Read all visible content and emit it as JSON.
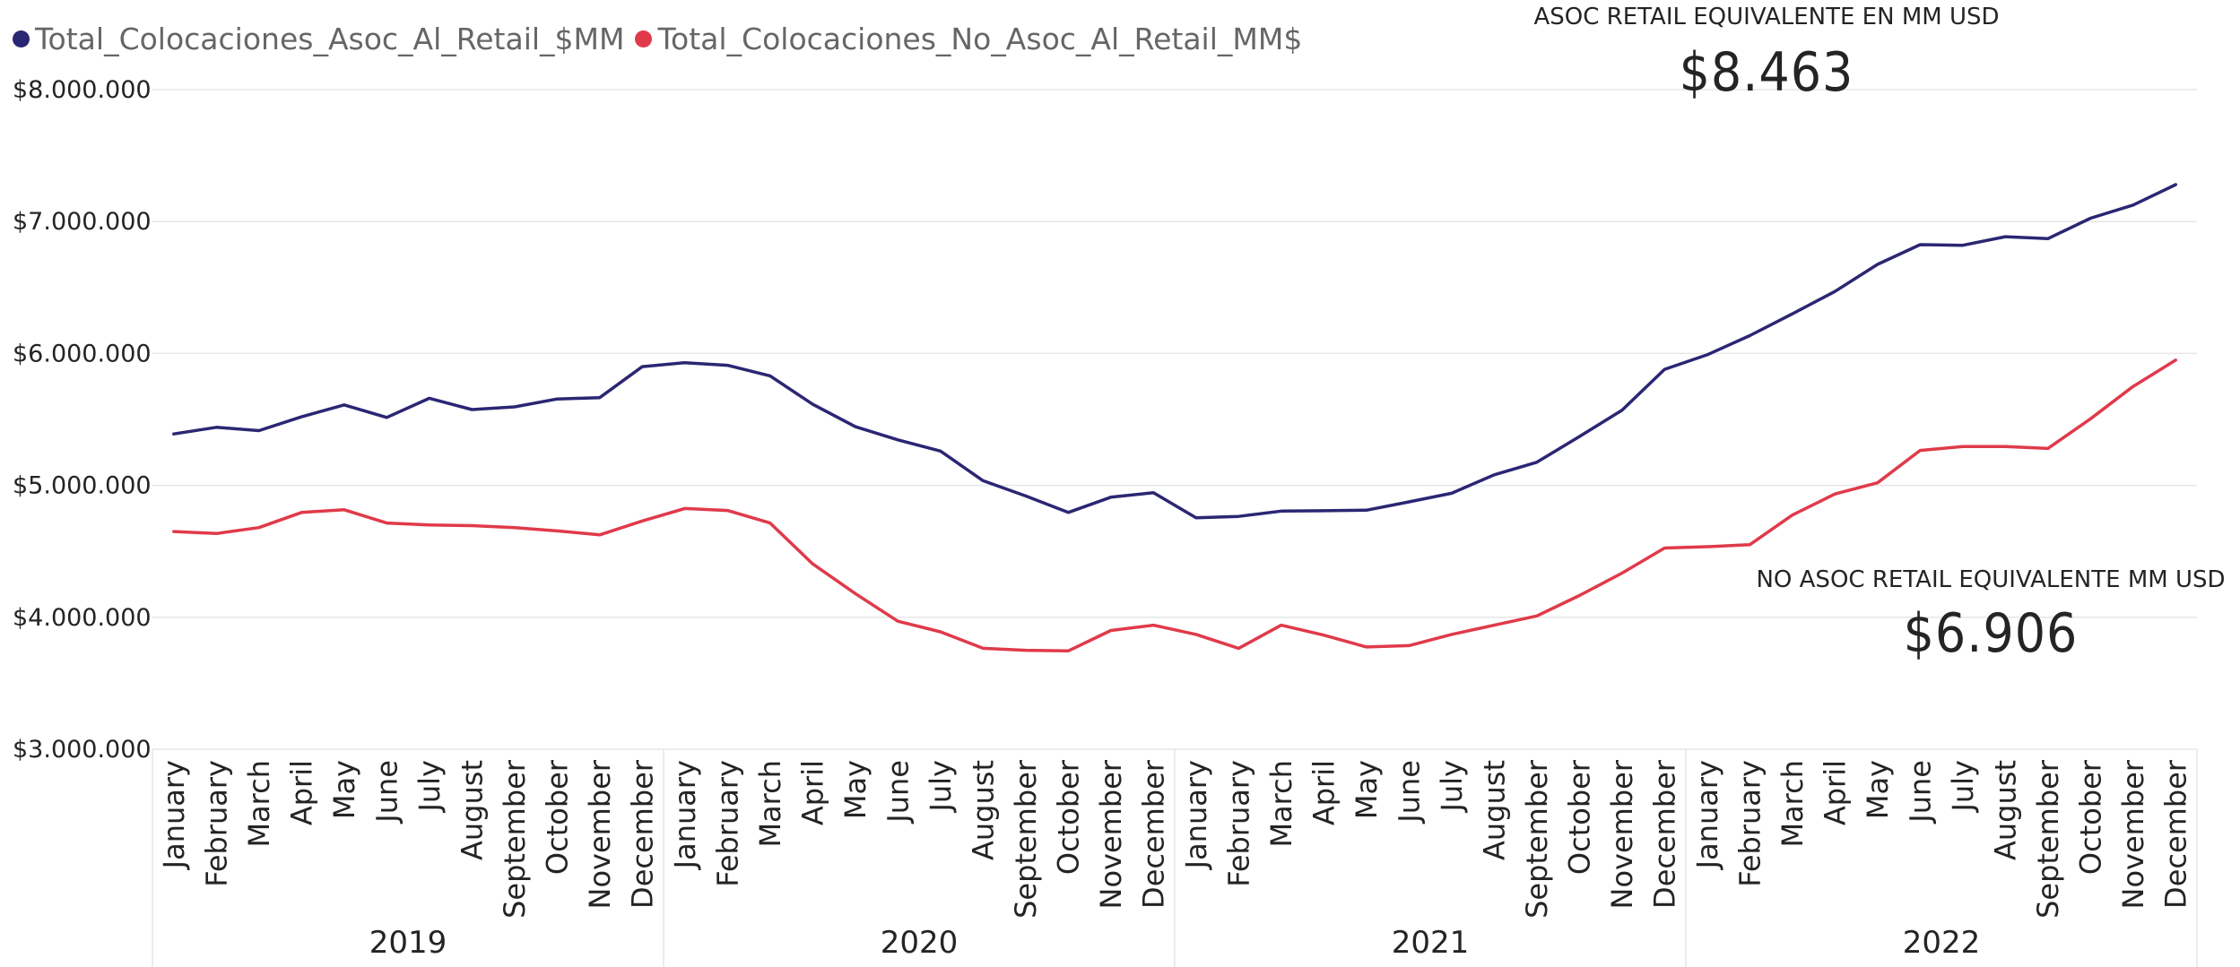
{
  "legend": {
    "items": [
      {
        "label": "Total_Colocaciones_Asoc_Al_Retail_$MM",
        "color": "#2b2673"
      },
      {
        "label": "Total_Colocaciones_No_Asoc_Al_Retail_MM$",
        "color": "#e03a4a"
      }
    ]
  },
  "cards": {
    "asoc": {
      "label": "ASOC RETAIL EQUIVALENTE EN MM USD",
      "value": "$8.463"
    },
    "no_asoc": {
      "label": "NO ASOC RETAIL EQUIVALENTE MM USD",
      "value": "$6.906"
    }
  },
  "chart_data": {
    "type": "line",
    "title": "",
    "xlabel": "",
    "ylabel": "",
    "ylim": [
      3000000,
      8000000
    ],
    "yticks": [
      3000000,
      4000000,
      5000000,
      6000000,
      7000000,
      8000000
    ],
    "ytick_labels": [
      "$3.000.000",
      "$4.000.000",
      "$5.000.000",
      "$6.000.000",
      "$7.000.000",
      "$8.000.000"
    ],
    "grid": true,
    "legend_position": "top-left",
    "years": [
      "2019",
      "2020",
      "2021",
      "2022"
    ],
    "months": [
      "January",
      "February",
      "March",
      "April",
      "May",
      "June",
      "July",
      "August",
      "September",
      "October",
      "November",
      "December"
    ],
    "series": [
      {
        "name": "Total_Colocaciones_Asoc_Al_Retail_$MM",
        "color": "#2b2673",
        "values": [
          5390000,
          5440000,
          5415000,
          5520000,
          5610000,
          5515000,
          5660000,
          5575000,
          5595000,
          5655000,
          5665000,
          5900000,
          5930000,
          5910000,
          5830000,
          5615000,
          5445000,
          5345000,
          5260000,
          5035000,
          4920000,
          4795000,
          4910000,
          4945000,
          4755000,
          4765000,
          4805000,
          4808000,
          4812000,
          4875000,
          4940000,
          5080000,
          5175000,
          5370000,
          5570000,
          5880000,
          5990000,
          6135000,
          6300000,
          6470000,
          6675000,
          6825000,
          6820000,
          6885000,
          6870000,
          7025000,
          7125000,
          7280000
        ]
      },
      {
        "name": "Total_Colocaciones_No_Asoc_Al_Retail_MM$",
        "color": "#e03a4a",
        "values": [
          4650000,
          4635000,
          4680000,
          4795000,
          4815000,
          4715000,
          4700000,
          4695000,
          4680000,
          4655000,
          4625000,
          4730000,
          4825000,
          4810000,
          4715000,
          4405000,
          4180000,
          3970000,
          3890000,
          3765000,
          3750000,
          3745000,
          3900000,
          3940000,
          3870000,
          3765000,
          3940000,
          3865000,
          3775000,
          3785000,
          3870000,
          3940000,
          4010000,
          4165000,
          4335000,
          4525000,
          4535000,
          4550000,
          4775000,
          4935000,
          5020000,
          5265000,
          5295000,
          5295000,
          5280000,
          5505000,
          5750000,
          5950000
        ]
      }
    ]
  }
}
